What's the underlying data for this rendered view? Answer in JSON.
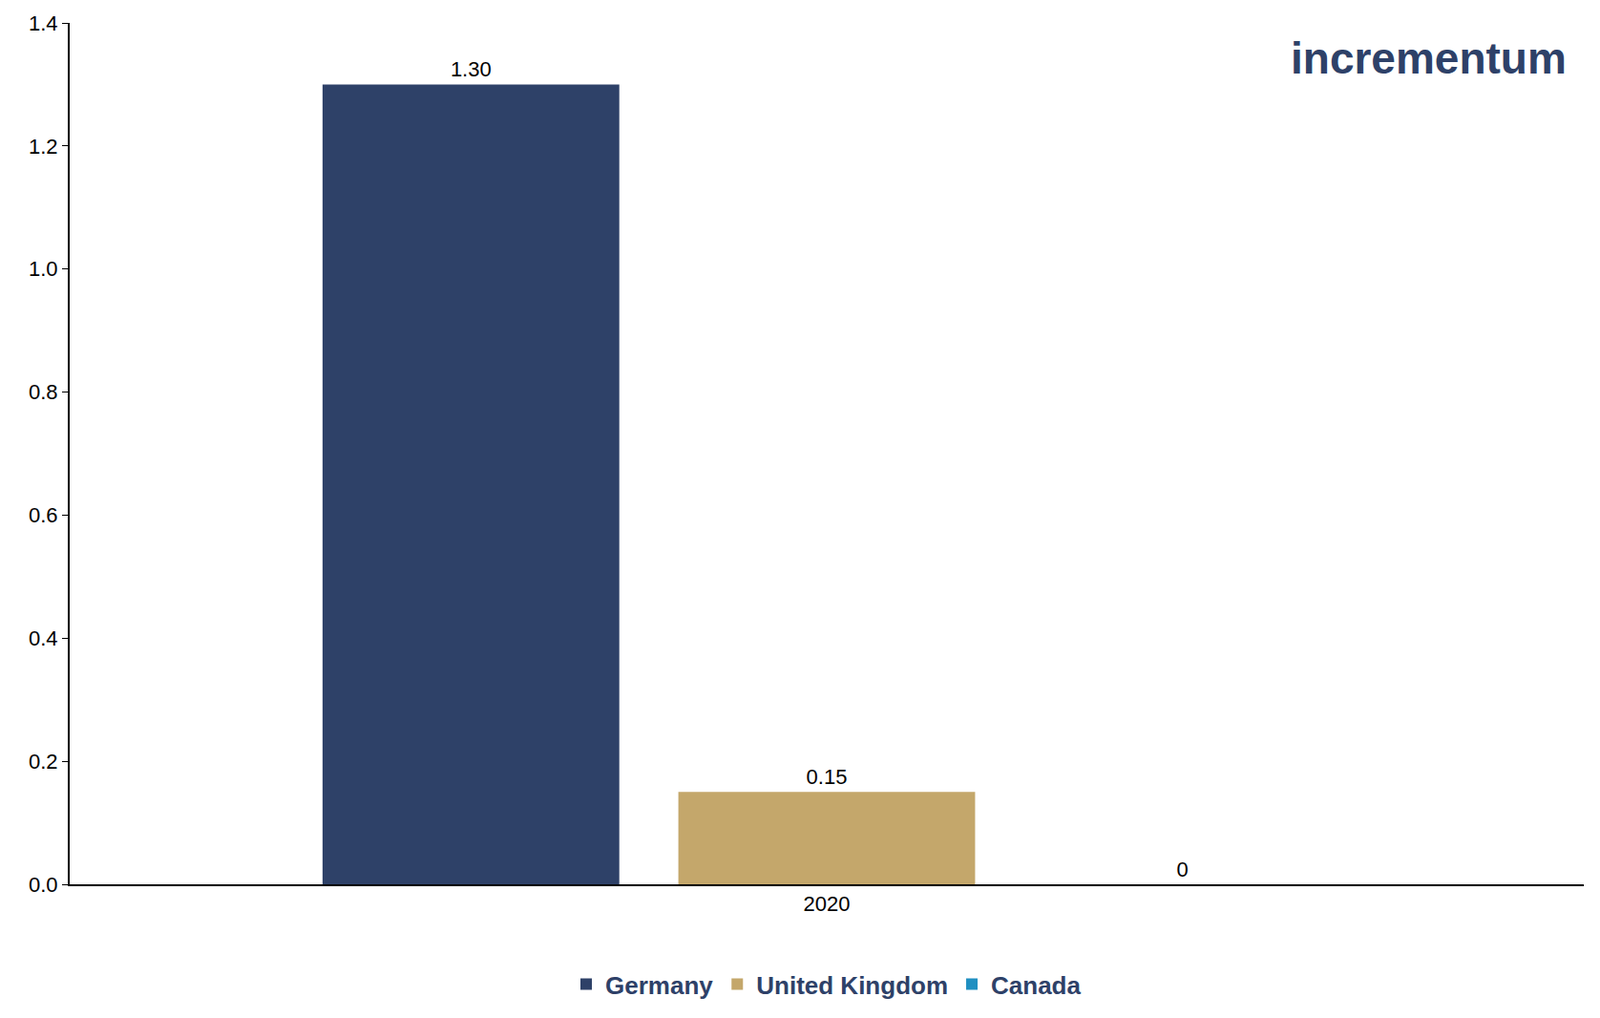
{
  "chart_data": {
    "type": "bar",
    "watermark": "incrementum",
    "categories": [
      "2020"
    ],
    "series": [
      {
        "name": "Germany",
        "color": "#2e4168",
        "values": [
          1.3
        ],
        "value_labels": [
          "1.30"
        ]
      },
      {
        "name": "United Kingdom",
        "color": "#c4a76b",
        "values": [
          0.15
        ],
        "value_labels": [
          "0.15"
        ]
      },
      {
        "name": "Canada",
        "color": "#1f8fc1",
        "values": [
          0
        ],
        "value_labels": [
          "0"
        ]
      }
    ],
    "ylim": [
      0,
      1.4
    ],
    "yticks": [
      {
        "value": 0,
        "label": "0.0"
      },
      0.2,
      0.4,
      0.6,
      0.8,
      {
        "value": 1,
        "label": "1.0"
      },
      1.2,
      1.4
    ],
    "grid": false,
    "legend": "bottom",
    "data_labels": true
  }
}
